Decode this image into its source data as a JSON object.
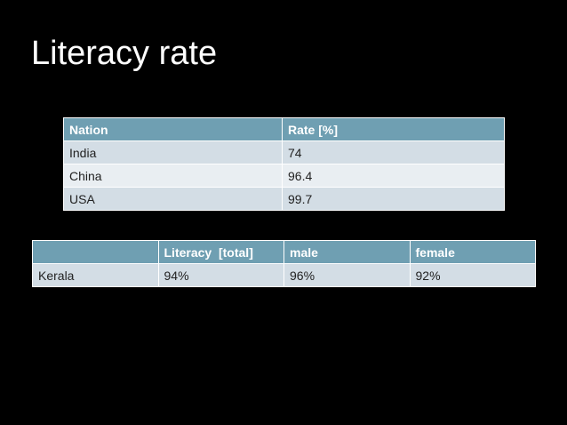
{
  "slide": {
    "title": "Literacy rate"
  },
  "nation_table": {
    "headers": [
      "Nation",
      "Rate [%]"
    ],
    "rows": [
      [
        "India",
        "74"
      ],
      [
        "China",
        "96.4"
      ],
      [
        "USA",
        "99.7"
      ]
    ]
  },
  "kerala_table": {
    "headers": [
      "",
      "Literacy  [total]",
      "male",
      "female"
    ],
    "rows": [
      [
        "Kerala",
        "94%",
        "96%",
        "92%"
      ]
    ]
  },
  "colors": {
    "background": "#000000",
    "header_fill": "#6f9fb2",
    "row_fill_odd": "#d3dde5",
    "row_fill_even": "#e9eef2",
    "title_text": "#ffffff"
  }
}
